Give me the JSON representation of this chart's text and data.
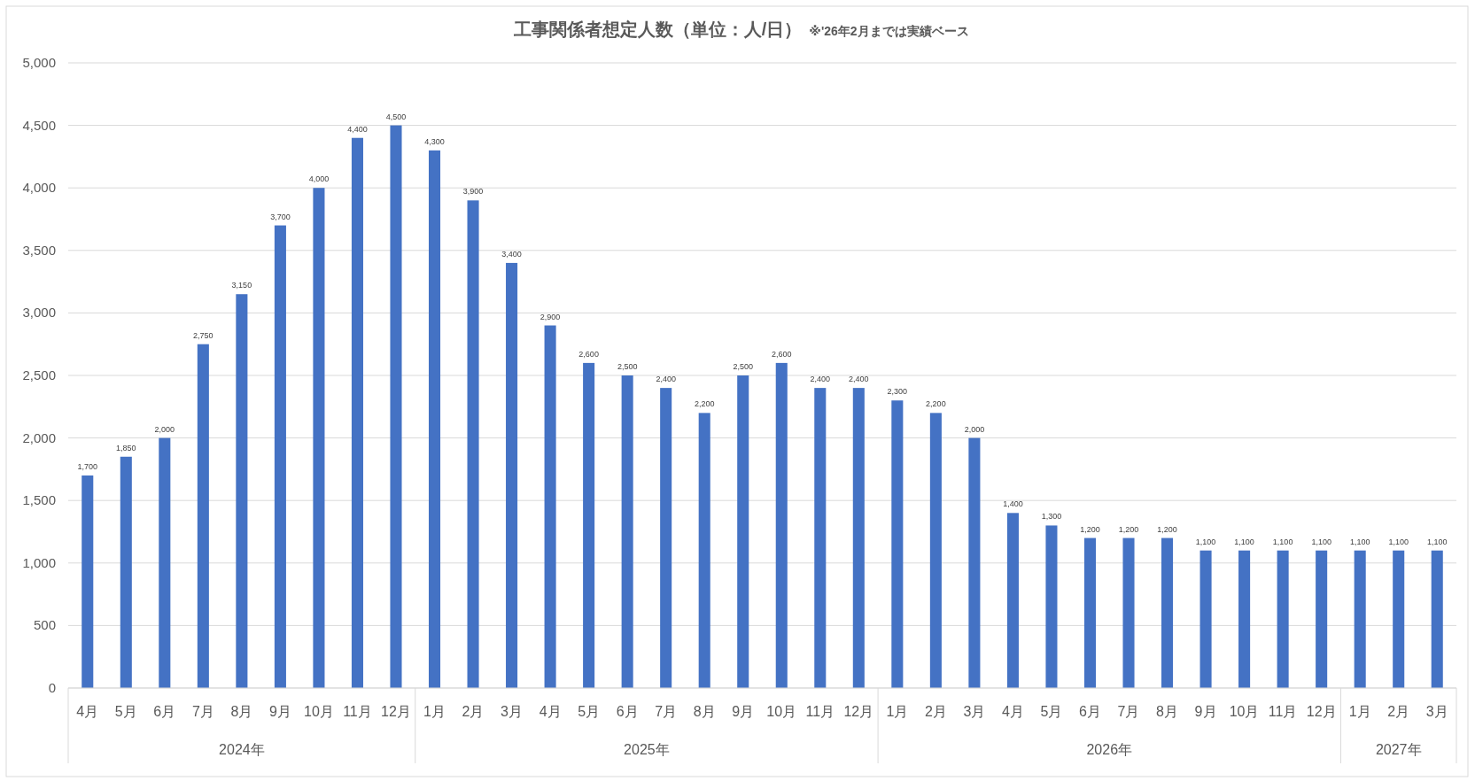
{
  "chart_data": {
    "type": "bar",
    "title": "工事関係者想定人数（単位：人/日）",
    "subtitle": "※'26年2月までは実績ベース",
    "categories": [
      "4月",
      "5月",
      "6月",
      "7月",
      "8月",
      "9月",
      "10月",
      "11月",
      "12月",
      "1月",
      "2月",
      "3月",
      "4月",
      "5月",
      "6月",
      "7月",
      "8月",
      "9月",
      "10月",
      "11月",
      "12月",
      "1月",
      "2月",
      "3月",
      "4月",
      "5月",
      "6月",
      "7月",
      "8月",
      "9月",
      "10月",
      "11月",
      "12月",
      "1月",
      "2月",
      "3月"
    ],
    "values": [
      1700,
      1850,
      2000,
      2750,
      3150,
      3700,
      4000,
      4400,
      4500,
      4300,
      3900,
      3400,
      2900,
      2600,
      2500,
      2400,
      2200,
      2500,
      2600,
      2400,
      2400,
      2300,
      2200,
      2000,
      1400,
      1300,
      1200,
      1200,
      1200,
      1100,
      1100,
      1100,
      1100,
      1100,
      1100,
      1100
    ],
    "value_labels": [
      "1,700",
      "1,850",
      "2,000",
      "2,750",
      "3,150",
      "3,700",
      "4,000",
      "4,400",
      "4,500",
      "4,300",
      "3,900",
      "3,400",
      "2,900",
      "2,600",
      "2,500",
      "2,400",
      "2,200",
      "2,500",
      "2,600",
      "2,400",
      "2,400",
      "2,300",
      "2,200",
      "2,000",
      "1,400",
      "1,300",
      "1,200",
      "1,200",
      "1,200",
      "1,100",
      "1,100",
      "1,100",
      "1,100",
      "1,100",
      "1,100",
      "1,100"
    ],
    "color": "#4472c4",
    "annotations": [
      "2024年",
      "2025年",
      "2026年",
      "2027年"
    ],
    "ylim": [
      0,
      5000
    ],
    "yticks": [
      0,
      500,
      {
        "value": 1000,
        "label": "1,000"
      },
      {
        "value": 1500,
        "label": "1,500"
      },
      {
        "value": 2000,
        "label": "2,000"
      },
      {
        "value": 2500,
        "label": "2,500"
      },
      {
        "value": 3000,
        "label": "3,000"
      },
      {
        "value": 3500,
        "label": "3,500"
      },
      {
        "value": 4000,
        "label": "4,000"
      },
      {
        "value": 4500,
        "label": "4,500"
      },
      {
        "value": 5000,
        "label": "5,000"
      }
    ],
    "grid": "y"
  }
}
